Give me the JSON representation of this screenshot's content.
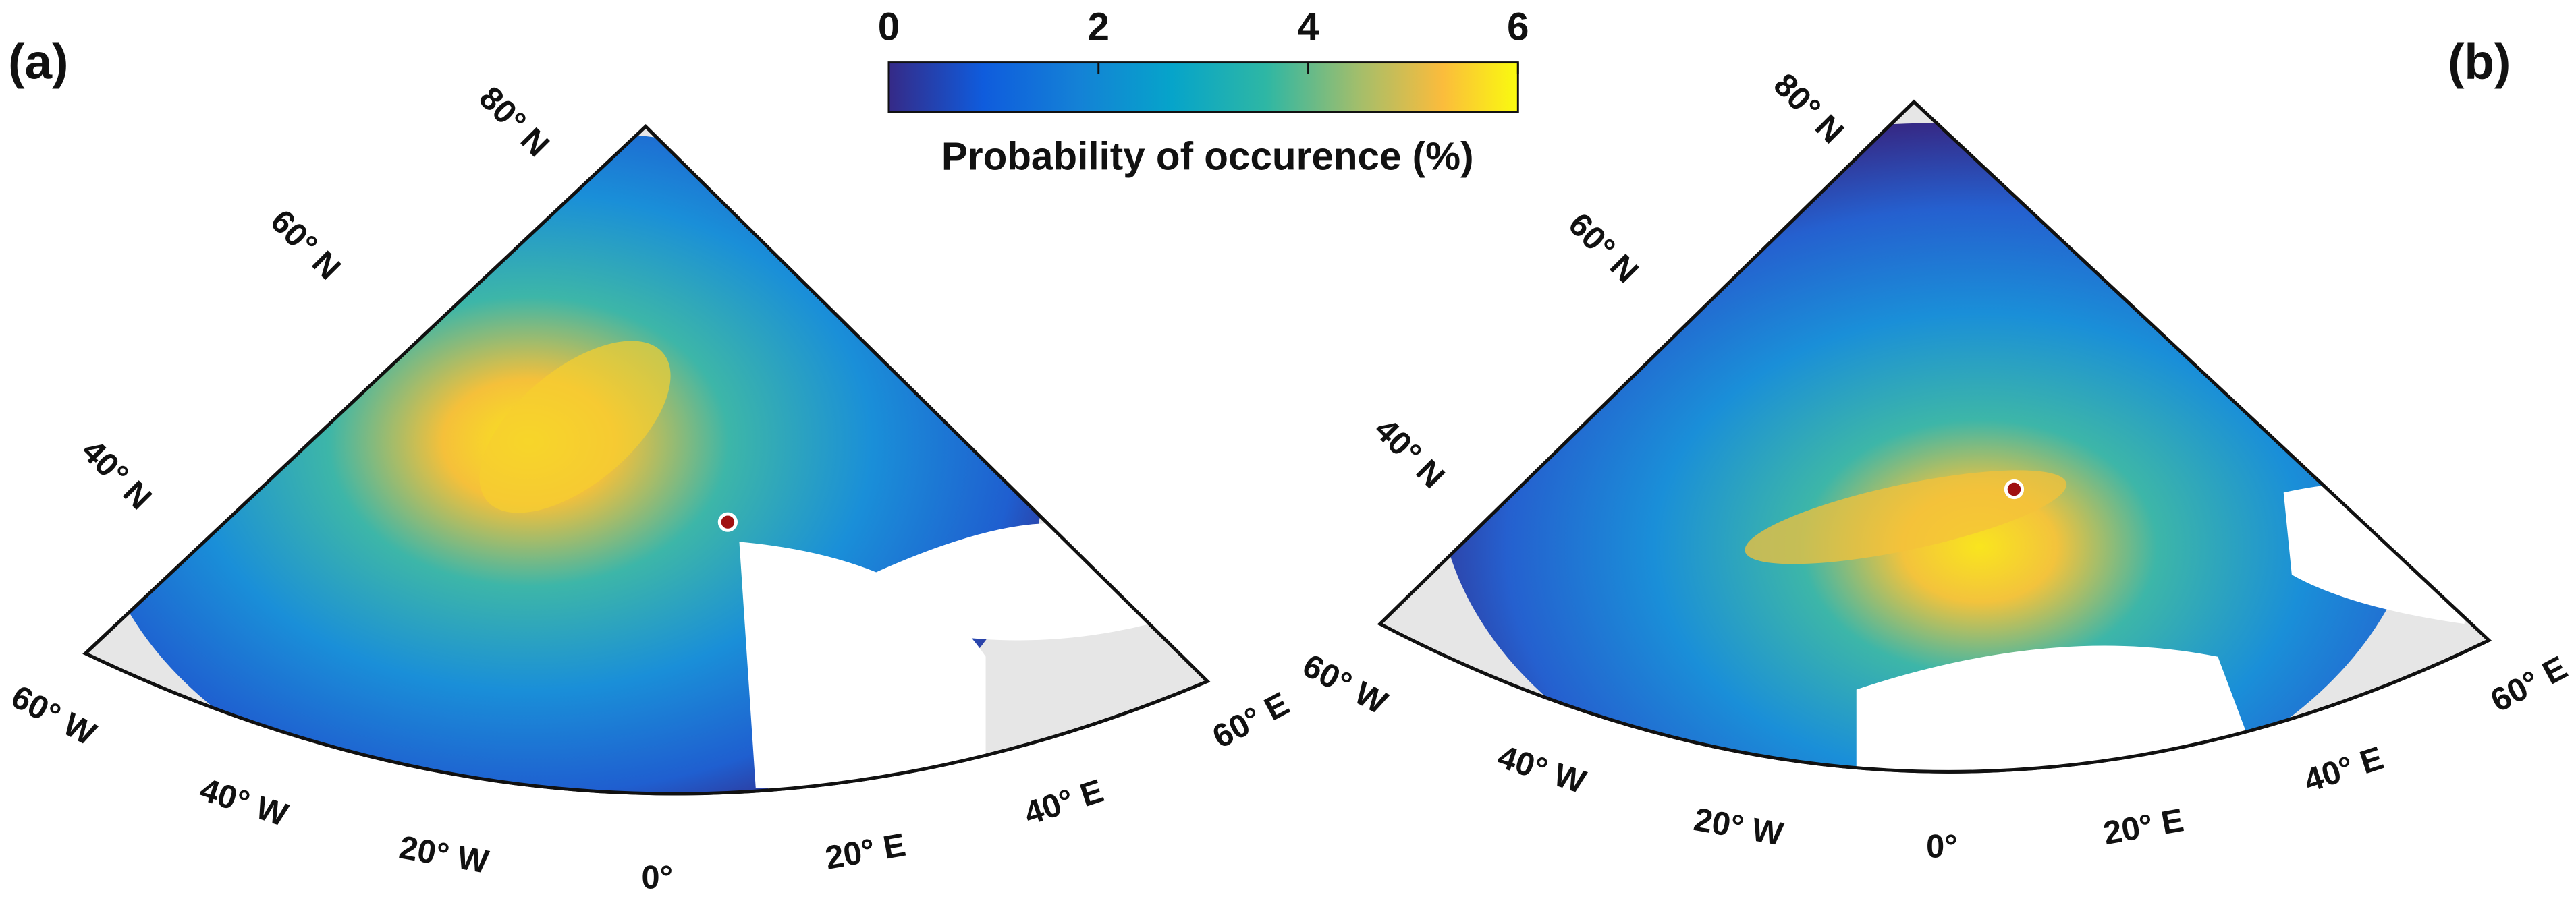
{
  "colorbar": {
    "label": "Probability of occurence (%)",
    "lim": [
      0,
      6
    ],
    "ticks": [
      0,
      2,
      4,
      6
    ]
  },
  "panels": [
    {
      "label": "(a)",
      "lat_labels": [
        "80° N",
        "60° N",
        "40° N"
      ],
      "lon_labels": [
        "60° W",
        "40° W",
        "20° W",
        "0°",
        "20° E",
        "40° E",
        "60° E"
      ]
    },
    {
      "label": "(b)",
      "lat_labels": [
        "80° N",
        "60° N",
        "40° N"
      ],
      "lon_labels": [
        "60° W",
        "40° W",
        "20° W",
        "0°",
        "20° E",
        "40° E",
        "60° E"
      ]
    }
  ]
}
